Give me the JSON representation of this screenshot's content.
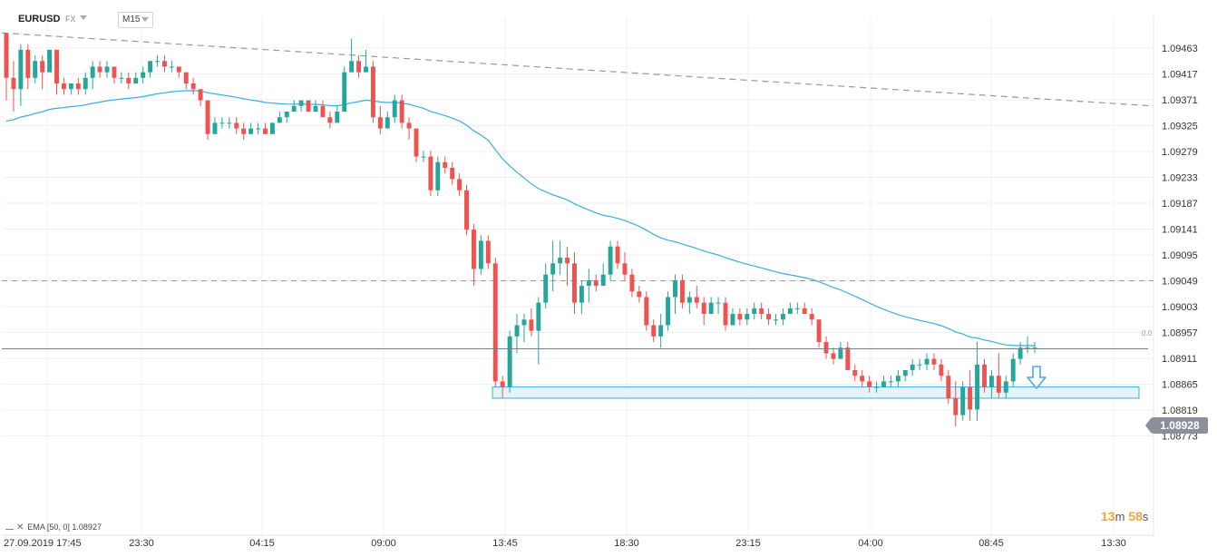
{
  "header": {
    "symbol": "EURUSD",
    "market": "FX",
    "timeframe": "M15"
  },
  "price_tag": "1.08928",
  "timer": {
    "minutes": "13",
    "minutes_unit": "m",
    "seconds": "58",
    "seconds_unit": "s"
  },
  "ema_legend": "EMA [50, 0] 1.08927",
  "fib_label": "0.0",
  "colors": {
    "up": "#26a69a",
    "down": "#ef5350",
    "ema": "#3aaee0",
    "zone_fill": "#e3f4fb",
    "zone_stroke": "#3aaee0",
    "arrow": "#4aa8e0",
    "grid": "#eef0f3"
  },
  "chart_data": {
    "type": "candlestick",
    "symbol": "EURUSD",
    "timeframe": "M15",
    "y_ticks": [
      "1.09463",
      "1.09417",
      "1.09371",
      "1.09325",
      "1.09279",
      "1.09233",
      "1.09187",
      "1.09141",
      "1.09095",
      "1.09049",
      "1.09003",
      "1.08957",
      "1.08911",
      "1.08865",
      "1.08819",
      "1.08773"
    ],
    "ylim": [
      1.0875,
      1.0951
    ],
    "x_ticks": [
      "27.09.2019 17:45",
      "23:30",
      "04:15",
      "09:00",
      "13:45",
      "18:30",
      "23:15",
      "04:00",
      "08:45",
      "13:30"
    ],
    "last_price": 1.08928,
    "ema": {
      "period": 50,
      "value": 1.08927
    },
    "horizontal_line": 1.09049,
    "trendline": {
      "start": 1.0949,
      "end": 1.0936
    },
    "support_zone": [
      1.0884,
      1.0886
    ],
    "candles": [
      [
        1.0949,
        1.0949,
        1.0937,
        1.0941
      ],
      [
        1.0941,
        1.0944,
        1.0935,
        1.0939
      ],
      [
        1.0939,
        1.0947,
        1.0936,
        1.0946
      ],
      [
        1.0946,
        1.0947,
        1.0939,
        1.0941
      ],
      [
        1.0941,
        1.0945,
        1.094,
        1.0944
      ],
      [
        1.0944,
        1.0945,
        1.0939,
        1.0942
      ],
      [
        1.0942,
        1.0946,
        1.0942,
        1.0946
      ],
      [
        1.0946,
        1.0946,
        1.0938,
        1.094
      ],
      [
        1.094,
        1.0941,
        1.0938,
        1.0939
      ],
      [
        1.0939,
        1.094,
        1.0938,
        1.094
      ],
      [
        1.094,
        1.0941,
        1.0938,
        1.0939
      ],
      [
        1.0939,
        1.0942,
        1.0938,
        1.0941
      ],
      [
        1.0941,
        1.0944,
        1.0939,
        1.0943
      ],
      [
        1.0943,
        1.0944,
        1.0941,
        1.0942
      ],
      [
        1.0942,
        1.0944,
        1.0941,
        1.0943
      ],
      [
        1.0943,
        1.0943,
        1.094,
        1.0941
      ],
      [
        1.0941,
        1.0942,
        1.094,
        1.0941
      ],
      [
        1.0941,
        1.0942,
        1.0939,
        1.094
      ],
      [
        1.094,
        1.0942,
        1.094,
        1.0941
      ],
      [
        1.0941,
        1.0943,
        1.094,
        1.0942
      ],
      [
        1.0942,
        1.0944,
        1.0941,
        1.0944
      ],
      [
        1.0944,
        1.0945,
        1.0943,
        1.0944
      ],
      [
        1.0944,
        1.0945,
        1.0942,
        1.0943
      ],
      [
        1.0943,
        1.0944,
        1.0942,
        1.0943
      ],
      [
        1.0943,
        1.0943,
        1.0941,
        1.0942
      ],
      [
        1.0942,
        1.0942,
        1.0939,
        1.094
      ],
      [
        1.094,
        1.0941,
        1.0938,
        1.0939
      ],
      [
        1.0939,
        1.0939,
        1.0936,
        1.0937
      ],
      [
        1.0937,
        1.0937,
        1.093,
        1.0931
      ],
      [
        1.0931,
        1.0934,
        1.0931,
        1.0933
      ],
      [
        1.0933,
        1.0934,
        1.0932,
        1.0933
      ],
      [
        1.0933,
        1.0934,
        1.0932,
        1.0933
      ],
      [
        1.0933,
        1.0934,
        1.0931,
        1.0932
      ],
      [
        1.0932,
        1.0933,
        1.093,
        1.0931
      ],
      [
        1.0931,
        1.0933,
        1.0931,
        1.0932
      ],
      [
        1.0932,
        1.0933,
        1.0931,
        1.0932
      ],
      [
        1.0932,
        1.0933,
        1.0931,
        1.0931
      ],
      [
        1.0931,
        1.0933,
        1.0931,
        1.0933
      ],
      [
        1.0933,
        1.0935,
        1.0933,
        1.0934
      ],
      [
        1.0934,
        1.0935,
        1.0933,
        1.0935
      ],
      [
        1.0935,
        1.0937,
        1.0935,
        1.0936
      ],
      [
        1.0936,
        1.0937,
        1.0935,
        1.0937
      ],
      [
        1.0937,
        1.0937,
        1.0935,
        1.0935
      ],
      [
        1.0935,
        1.0937,
        1.0935,
        1.0936
      ],
      [
        1.0936,
        1.0937,
        1.0934,
        1.0934
      ],
      [
        1.0934,
        1.0935,
        1.0932,
        1.0933
      ],
      [
        1.0933,
        1.0936,
        1.0933,
        1.0935
      ],
      [
        1.0935,
        1.0943,
        1.0935,
        1.0942
      ],
      [
        1.0942,
        1.0948,
        1.0942,
        1.0944
      ],
      [
        1.0944,
        1.0945,
        1.0941,
        1.0942
      ],
      [
        1.0942,
        1.0946,
        1.0942,
        1.0943
      ],
      [
        1.0943,
        1.0944,
        1.0933,
        1.0934
      ],
      [
        1.0934,
        1.0936,
        1.0931,
        1.0932
      ],
      [
        1.0932,
        1.0935,
        1.0932,
        1.0934
      ],
      [
        1.0934,
        1.0938,
        1.0933,
        1.0937
      ],
      [
        1.0937,
        1.0938,
        1.0932,
        1.0933
      ],
      [
        1.0933,
        1.0934,
        1.093,
        1.0932
      ],
      [
        1.0932,
        1.0932,
        1.0926,
        1.0927
      ],
      [
        1.0927,
        1.0928,
        1.0926,
        1.0927
      ],
      [
        1.0927,
        1.0928,
        1.092,
        1.0921
      ],
      [
        1.0921,
        1.0927,
        1.092,
        1.0926
      ],
      [
        1.0926,
        1.0927,
        1.0924,
        1.0925
      ],
      [
        1.0925,
        1.0926,
        1.0922,
        1.0923
      ],
      [
        1.0923,
        1.0924,
        1.092,
        1.0921
      ],
      [
        1.0921,
        1.0922,
        1.0913,
        1.0914
      ],
      [
        1.0914,
        1.0915,
        1.0904,
        1.0907
      ],
      [
        1.0907,
        1.0913,
        1.0906,
        1.0912
      ],
      [
        1.0912,
        1.0913,
        1.0907,
        1.0908
      ],
      [
        1.0908,
        1.0909,
        1.0886,
        1.0887
      ],
      [
        1.0887,
        1.0888,
        1.0884,
        1.0886
      ],
      [
        1.0886,
        1.0896,
        1.0885,
        1.0895
      ],
      [
        1.0895,
        1.0899,
        1.0892,
        1.0897
      ],
      [
        1.0897,
        1.0899,
        1.0894,
        1.0898
      ],
      [
        1.0898,
        1.09,
        1.0895,
        1.0896
      ],
      [
        1.0896,
        1.0902,
        1.089,
        1.0901
      ],
      [
        1.0901,
        1.0908,
        1.09,
        1.0906
      ],
      [
        1.0906,
        1.0912,
        1.0903,
        1.0908
      ],
      [
        1.0908,
        1.0912,
        1.0906,
        1.0909
      ],
      [
        1.0909,
        1.0911,
        1.0904,
        1.0908
      ],
      [
        1.0908,
        1.091,
        1.0899,
        1.0901
      ],
      [
        1.0901,
        1.0905,
        1.0899,
        1.0904
      ],
      [
        1.0904,
        1.0907,
        1.0901,
        1.0905
      ],
      [
        1.0905,
        1.0906,
        1.0903,
        1.0904
      ],
      [
        1.0904,
        1.0908,
        1.0904,
        1.0906
      ],
      [
        1.0906,
        1.0912,
        1.0905,
        1.0911
      ],
      [
        1.0911,
        1.0912,
        1.0907,
        1.0908
      ],
      [
        1.0908,
        1.091,
        1.0905,
        1.0906
      ],
      [
        1.0906,
        1.0907,
        1.0902,
        1.0903
      ],
      [
        1.0903,
        1.0904,
        1.0901,
        1.0902
      ],
      [
        1.0902,
        1.0903,
        1.0896,
        1.0897
      ],
      [
        1.0897,
        1.0898,
        1.0894,
        1.0895
      ],
      [
        1.0895,
        1.0899,
        1.0893,
        1.0897
      ],
      [
        1.0897,
        1.0903,
        1.0896,
        1.0902
      ],
      [
        1.0902,
        1.0906,
        1.0899,
        1.0905
      ],
      [
        1.0905,
        1.0906,
        1.09,
        1.0901
      ],
      [
        1.0901,
        1.0903,
        1.0899,
        1.0902
      ],
      [
        1.0902,
        1.0904,
        1.09,
        1.0901
      ],
      [
        1.0901,
        1.0902,
        1.0897,
        1.0899
      ],
      [
        1.0899,
        1.0902,
        1.0899,
        1.0901
      ],
      [
        1.0901,
        1.0902,
        1.0899,
        1.0901
      ],
      [
        1.0901,
        1.0902,
        1.0896,
        1.0897
      ],
      [
        1.0897,
        1.09,
        1.0897,
        1.0899
      ],
      [
        1.0899,
        1.09,
        1.0897,
        1.0898
      ],
      [
        1.0898,
        1.09,
        1.0897,
        1.0899
      ],
      [
        1.0899,
        1.0901,
        1.0898,
        1.09
      ],
      [
        1.09,
        1.0901,
        1.0898,
        1.0899
      ],
      [
        1.0899,
        1.09,
        1.0897,
        1.0898
      ],
      [
        1.0898,
        1.0899,
        1.0897,
        1.0898
      ],
      [
        1.0898,
        1.09,
        1.0897,
        1.0899
      ],
      [
        1.0899,
        1.0901,
        1.0899,
        1.09
      ],
      [
        1.09,
        1.0901,
        1.0899,
        1.09
      ],
      [
        1.09,
        1.0901,
        1.0899,
        1.0899
      ],
      [
        1.0899,
        1.09,
        1.0897,
        1.0898
      ],
      [
        1.0898,
        1.0898,
        1.0893,
        1.0894
      ],
      [
        1.0894,
        1.0895,
        1.0891,
        1.0892
      ],
      [
        1.0892,
        1.0893,
        1.089,
        1.0891
      ],
      [
        1.0891,
        1.0894,
        1.0891,
        1.0893
      ],
      [
        1.0893,
        1.0894,
        1.0889,
        1.0889
      ],
      [
        1.0889,
        1.089,
        1.0887,
        1.0888
      ],
      [
        1.0888,
        1.0889,
        1.0886,
        1.0887
      ],
      [
        1.0887,
        1.0888,
        1.0885,
        1.0886
      ],
      [
        1.0886,
        1.0887,
        1.0885,
        1.0886
      ],
      [
        1.0886,
        1.0888,
        1.0886,
        1.0887
      ],
      [
        1.0887,
        1.0888,
        1.0886,
        1.0887
      ],
      [
        1.0887,
        1.0889,
        1.0886,
        1.0888
      ],
      [
        1.0888,
        1.0889,
        1.0887,
        1.0889
      ],
      [
        1.0889,
        1.0891,
        1.0888,
        1.089
      ],
      [
        1.089,
        1.0891,
        1.0889,
        1.089
      ],
      [
        1.089,
        1.0892,
        1.0889,
        1.0891
      ],
      [
        1.0891,
        1.0892,
        1.0889,
        1.089
      ],
      [
        1.089,
        1.0891,
        1.0887,
        1.0888
      ],
      [
        1.0888,
        1.0889,
        1.0883,
        1.0884
      ],
      [
        1.0884,
        1.0887,
        1.0879,
        1.0881
      ],
      [
        1.0881,
        1.0887,
        1.088,
        1.0886
      ],
      [
        1.0886,
        1.0889,
        1.088,
        1.0882
      ],
      [
        1.0882,
        1.0894,
        1.088,
        1.089
      ],
      [
        1.089,
        1.0891,
        1.0885,
        1.0886
      ],
      [
        1.0886,
        1.0889,
        1.0884,
        1.0888
      ],
      [
        1.0888,
        1.0892,
        1.0884,
        1.0885
      ],
      [
        1.0885,
        1.0888,
        1.0884,
        1.0887
      ],
      [
        1.0887,
        1.0892,
        1.0886,
        1.0891
      ],
      [
        1.0891,
        1.0894,
        1.089,
        1.0893
      ],
      [
        1.0893,
        1.0895,
        1.0892,
        1.0893
      ],
      [
        1.0893,
        1.0894,
        1.0892,
        1.0893
      ]
    ]
  }
}
